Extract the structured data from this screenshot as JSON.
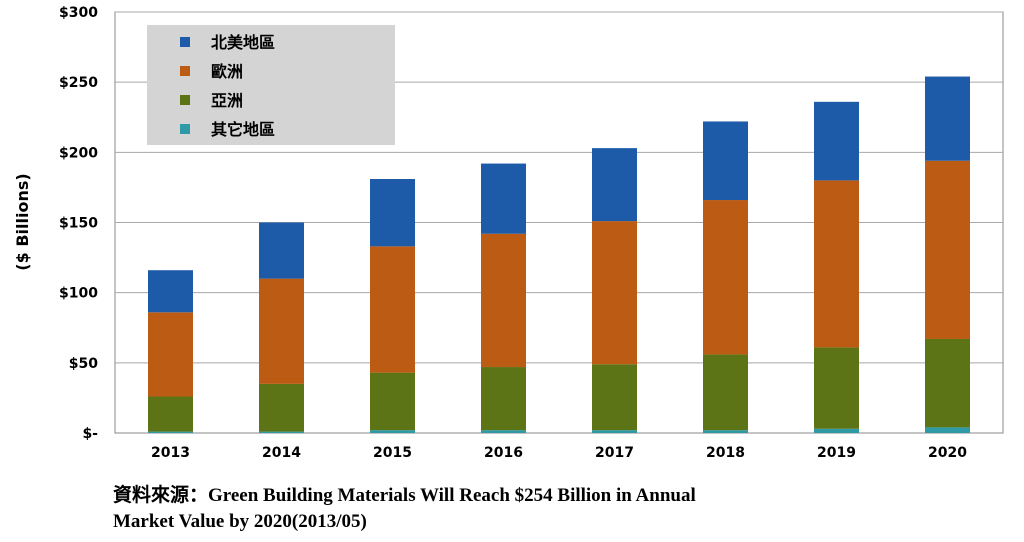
{
  "chart_data": {
    "type": "bar",
    "stacked": true,
    "categories": [
      "2013",
      "2014",
      "2015",
      "2016",
      "2017",
      "2018",
      "2019",
      "2020"
    ],
    "series": [
      {
        "name": "其它地區",
        "color": "#2e9aa6",
        "values": [
          1,
          1,
          2,
          2,
          2,
          2,
          3,
          4
        ]
      },
      {
        "name": "亞洲",
        "color": "#5c7415",
        "values": [
          25,
          34,
          41,
          45,
          47,
          54,
          58,
          63
        ]
      },
      {
        "name": "歐洲",
        "color": "#bc5b14",
        "values": [
          60,
          75,
          90,
          95,
          102,
          110,
          119,
          127
        ]
      },
      {
        "name": "北美地區",
        "color": "#1d5aa7",
        "values": [
          30,
          40,
          48,
          50,
          52,
          56,
          56,
          60
        ]
      }
    ],
    "legend_order": [
      "北美地區",
      "歐洲",
      "亞洲",
      "其它地區"
    ],
    "ylabel": "($ Billions)",
    "ylim": [
      0,
      300
    ],
    "yticks": [
      0,
      50,
      100,
      150,
      200,
      250,
      300
    ],
    "ytick_labels": [
      "$-",
      "$50",
      "$100",
      "$150",
      "$200",
      "$250",
      "$300"
    ],
    "grid": true,
    "legend_position": "top-left"
  },
  "source_note": {
    "line1": "資料來源：Green Building Materials Will Reach $254 Billion in Annual",
    "line2": "Market Value by 2020(2013/05)"
  }
}
